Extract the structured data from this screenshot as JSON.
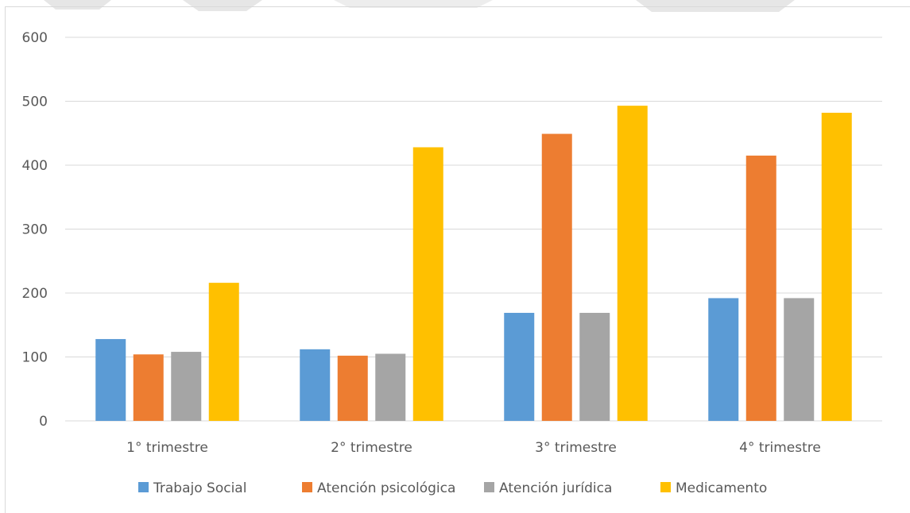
{
  "chart_data": {
    "type": "bar",
    "categories": [
      "1° trimestre",
      "2° trimestre",
      "3° trimestre",
      "4° trimestre"
    ],
    "series": [
      {
        "name": "Trabajo Social",
        "values": [
          128,
          112,
          169,
          192
        ],
        "color": "#5b9bd5"
      },
      {
        "name": "Atención psicológica",
        "values": [
          104,
          102,
          449,
          415
        ],
        "color": "#ed7d31"
      },
      {
        "name": "Atención jurídica",
        "values": [
          108,
          105,
          169,
          192
        ],
        "color": "#a5a5a5"
      },
      {
        "name": "Medicamento",
        "values": [
          216,
          428,
          493,
          482
        ],
        "color": "#ffc000"
      }
    ],
    "title": "",
    "xlabel": "",
    "ylabel": "",
    "ylim": [
      0,
      600
    ],
    "yticks": [
      0,
      100,
      200,
      300,
      400,
      500,
      600
    ],
    "grid": true,
    "legend_position": "bottom"
  }
}
